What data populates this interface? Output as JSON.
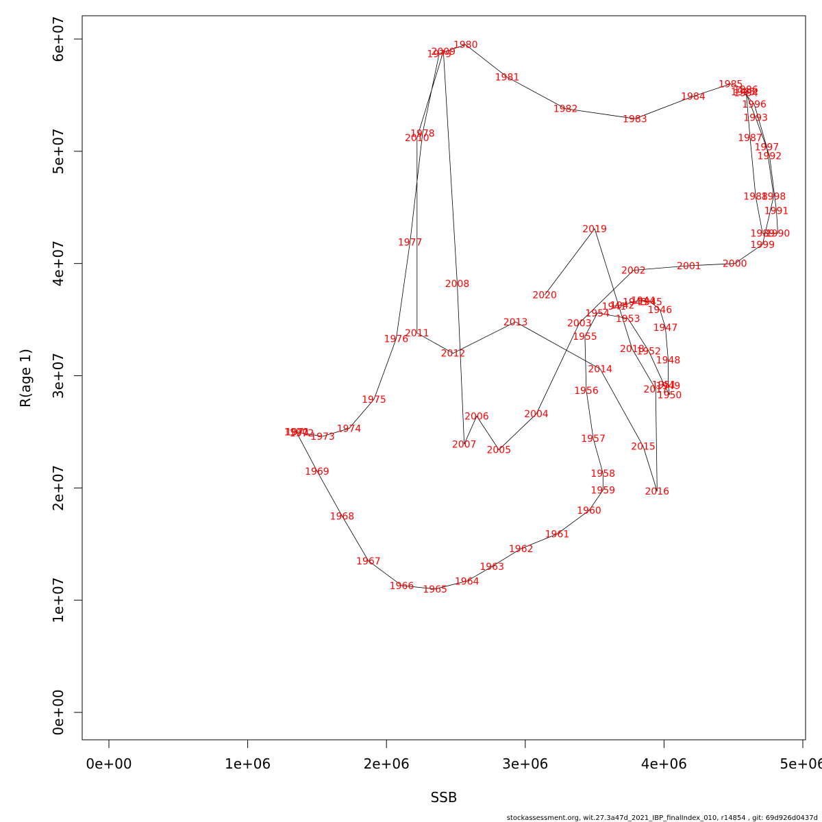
{
  "chart_data": {
    "type": "scatter",
    "xlabel": "SSB",
    "ylabel": "R(age 1)",
    "xlim": [
      0,
      5000000
    ],
    "ylim": [
      0,
      60000000
    ],
    "x_ticks": [
      0,
      1000000,
      2000000,
      3000000,
      4000000,
      5000000
    ],
    "x_tick_labels": [
      "0e+00",
      "1e+06",
      "2e+06",
      "3e+06",
      "4e+06",
      "5e+06"
    ],
    "y_ticks": [
      0,
      10000000,
      20000000,
      30000000,
      40000000,
      50000000,
      60000000
    ],
    "y_tick_labels": [
      "0e+00",
      "1e+07",
      "2e+07",
      "3e+07",
      "4e+07",
      "5e+07",
      "6e+07"
    ],
    "connect_points": true,
    "label_color": "#ff0000",
    "line_color": "#000000",
    "points": [
      {
        "label": "1941",
        "x": 3640000,
        "y": 36200000
      },
      {
        "label": "1942",
        "x": 3700000,
        "y": 36300000
      },
      {
        "label": "1943",
        "x": 3790000,
        "y": 36600000
      },
      {
        "label": "1944",
        "x": 3850000,
        "y": 36700000
      },
      {
        "label": "1945",
        "x": 3900000,
        "y": 36600000
      },
      {
        "label": "1946",
        "x": 3970000,
        "y": 35900000
      },
      {
        "label": "1947",
        "x": 4010000,
        "y": 34300000
      },
      {
        "label": "1948",
        "x": 4030000,
        "y": 31400000
      },
      {
        "label": "1949",
        "x": 4030000,
        "y": 29100000
      },
      {
        "label": "1950",
        "x": 4040000,
        "y": 28300000
      },
      {
        "label": "1951",
        "x": 4000000,
        "y": 29200000
      },
      {
        "label": "1952",
        "x": 3890000,
        "y": 32200000
      },
      {
        "label": "1953",
        "x": 3740000,
        "y": 35100000
      },
      {
        "label": "1954",
        "x": 3520000,
        "y": 35600000
      },
      {
        "label": "1955",
        "x": 3430000,
        "y": 33500000
      },
      {
        "label": "1956",
        "x": 3440000,
        "y": 28700000
      },
      {
        "label": "1957",
        "x": 3490000,
        "y": 24400000
      },
      {
        "label": "1958",
        "x": 3560000,
        "y": 21300000
      },
      {
        "label": "1959",
        "x": 3560000,
        "y": 19800000
      },
      {
        "label": "1960",
        "x": 3460000,
        "y": 18000000
      },
      {
        "label": "1961",
        "x": 3230000,
        "y": 15900000
      },
      {
        "label": "1962",
        "x": 2970000,
        "y": 14600000
      },
      {
        "label": "1963",
        "x": 2760000,
        "y": 13000000
      },
      {
        "label": "1964",
        "x": 2580000,
        "y": 11700000
      },
      {
        "label": "1965",
        "x": 2350000,
        "y": 11000000
      },
      {
        "label": "1966",
        "x": 2110000,
        "y": 11300000
      },
      {
        "label": "1967",
        "x": 1870000,
        "y": 13500000
      },
      {
        "label": "1968",
        "x": 1680000,
        "y": 17500000
      },
      {
        "label": "1969",
        "x": 1500000,
        "y": 21500000
      },
      {
        "label": "1970",
        "x": 1350000,
        "y": 25000000
      },
      {
        "label": "1971",
        "x": 1360000,
        "y": 25000000
      },
      {
        "label": "1972",
        "x": 1390000,
        "y": 24900000
      },
      {
        "label": "1973",
        "x": 1540000,
        "y": 24600000
      },
      {
        "label": "1974",
        "x": 1730000,
        "y": 25300000
      },
      {
        "label": "1975",
        "x": 1910000,
        "y": 27900000
      },
      {
        "label": "1976",
        "x": 2070000,
        "y": 33300000
      },
      {
        "label": "1977",
        "x": 2170000,
        "y": 41900000
      },
      {
        "label": "1978",
        "x": 2260000,
        "y": 51600000
      },
      {
        "label": "1979",
        "x": 2380000,
        "y": 58700000
      },
      {
        "label": "1980",
        "x": 2570000,
        "y": 59500000
      },
      {
        "label": "1981",
        "x": 2870000,
        "y": 56600000
      },
      {
        "label": "1982",
        "x": 3290000,
        "y": 53800000
      },
      {
        "label": "1983",
        "x": 3790000,
        "y": 52900000
      },
      {
        "label": "1984",
        "x": 4210000,
        "y": 54900000
      },
      {
        "label": "1985",
        "x": 4480000,
        "y": 56000000
      },
      {
        "label": "1986",
        "x": 4590000,
        "y": 55500000
      },
      {
        "label": "1987",
        "x": 4620000,
        "y": 51200000
      },
      {
        "label": "1988",
        "x": 4660000,
        "y": 46000000
      },
      {
        "label": "1989",
        "x": 4710000,
        "y": 42700000
      },
      {
        "label": "1990",
        "x": 4820000,
        "y": 42700000
      },
      {
        "label": "1991",
        "x": 4810000,
        "y": 44700000
      },
      {
        "label": "1992",
        "x": 4760000,
        "y": 49600000
      },
      {
        "label": "1993",
        "x": 4660000,
        "y": 53000000
      },
      {
        "label": "1994",
        "x": 4590000,
        "y": 55200000
      },
      {
        "label": "1995",
        "x": 4570000,
        "y": 55300000
      },
      {
        "label": "1996",
        "x": 4650000,
        "y": 54200000
      },
      {
        "label": "1997",
        "x": 4740000,
        "y": 50400000
      },
      {
        "label": "1998",
        "x": 4790000,
        "y": 46000000
      },
      {
        "label": "1999",
        "x": 4710000,
        "y": 41700000
      },
      {
        "label": "2000",
        "x": 4510000,
        "y": 40000000
      },
      {
        "label": "2001",
        "x": 4180000,
        "y": 39800000
      },
      {
        "label": "2002",
        "x": 3780000,
        "y": 39400000
      },
      {
        "label": "2003",
        "x": 3390000,
        "y": 34700000
      },
      {
        "label": "2004",
        "x": 3080000,
        "y": 26600000
      },
      {
        "label": "2005",
        "x": 2810000,
        "y": 23400000
      },
      {
        "label": "2006",
        "x": 2650000,
        "y": 26400000
      },
      {
        "label": "2007",
        "x": 2560000,
        "y": 23900000
      },
      {
        "label": "2008",
        "x": 2510000,
        "y": 38200000
      },
      {
        "label": "2009",
        "x": 2410000,
        "y": 58900000
      },
      {
        "label": "2010",
        "x": 2220000,
        "y": 51200000
      },
      {
        "label": "2011",
        "x": 2220000,
        "y": 33800000
      },
      {
        "label": "2012",
        "x": 2480000,
        "y": 32000000
      },
      {
        "label": "2013",
        "x": 2930000,
        "y": 34800000
      },
      {
        "label": "2014",
        "x": 3540000,
        "y": 30600000
      },
      {
        "label": "2015",
        "x": 3850000,
        "y": 23700000
      },
      {
        "label": "2016",
        "x": 3950000,
        "y": 19700000
      },
      {
        "label": "2017",
        "x": 3940000,
        "y": 28800000
      },
      {
        "label": "2018",
        "x": 3770000,
        "y": 32400000
      },
      {
        "label": "2019",
        "x": 3500000,
        "y": 43100000
      },
      {
        "label": "2020",
        "x": 3140000,
        "y": 37200000
      }
    ]
  },
  "footer": {
    "text": "stockassessment.org, wit.27.3a47d_2021_IBP_finalIndex_010, r14854 , git: 69d926d0437d"
  }
}
